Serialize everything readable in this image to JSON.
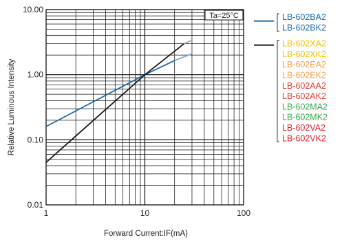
{
  "chart_data": {
    "type": "line",
    "xlabel": "Forward Current:IF(mA)",
    "ylabel": "Relative Luminous Intensity",
    "x_scale": "log",
    "y_scale": "log",
    "xlim": [
      1,
      100
    ],
    "ylim": [
      0.01,
      10
    ],
    "x_tick_labels": [
      "1",
      "10",
      "100"
    ],
    "y_tick_labels": [
      "0.01",
      "0.10",
      "1.00",
      "10.00"
    ],
    "grid": true,
    "annotation": "Ta=25°C",
    "series": [
      {
        "color": "#1a6aab",
        "points": [
          [
            1,
            0.16
          ],
          [
            10,
            1.0
          ],
          [
            20,
            1.65
          ]
        ],
        "extension": [
          [
            20,
            1.65
          ],
          [
            30,
            2.1
          ]
        ],
        "extension_color": "#7fa8d8"
      },
      {
        "color": "#1a1a1a",
        "points": [
          [
            1,
            0.045
          ],
          [
            10,
            1.0
          ],
          [
            25,
            3.0
          ]
        ],
        "extension": [
          [
            25,
            3.0
          ],
          [
            30,
            3.4
          ]
        ],
        "extension_color": "#aaaaaa"
      }
    ],
    "legend_groups": [
      {
        "line_color": "#1a6aab",
        "entries": [
          {
            "label": "LB-602BA2",
            "color": "#1a6aab"
          },
          {
            "label": "LB-602BK2",
            "color": "#1a6aab"
          }
        ]
      },
      {
        "line_color": "#1a1a1a",
        "entries": [
          {
            "label": "LB-602XA2",
            "color": "#f5c400"
          },
          {
            "label": "LB-602XK2",
            "color": "#f5c400"
          },
          {
            "label": "LB-602EA2",
            "color": "#f5a04a"
          },
          {
            "label": "LB-602EK2",
            "color": "#f5a04a"
          },
          {
            "label": "LB-602AA2",
            "color": "#e8382e"
          },
          {
            "label": "LB-602AK2",
            "color": "#e8382e"
          },
          {
            "label": "LB-602MA2",
            "color": "#3aa84a"
          },
          {
            "label": "LB-602MK2",
            "color": "#3aa84a"
          },
          {
            "label": "LB-602VA2",
            "color": "#d8202a"
          },
          {
            "label": "LB-602VK2",
            "color": "#d8202a"
          }
        ]
      }
    ]
  }
}
